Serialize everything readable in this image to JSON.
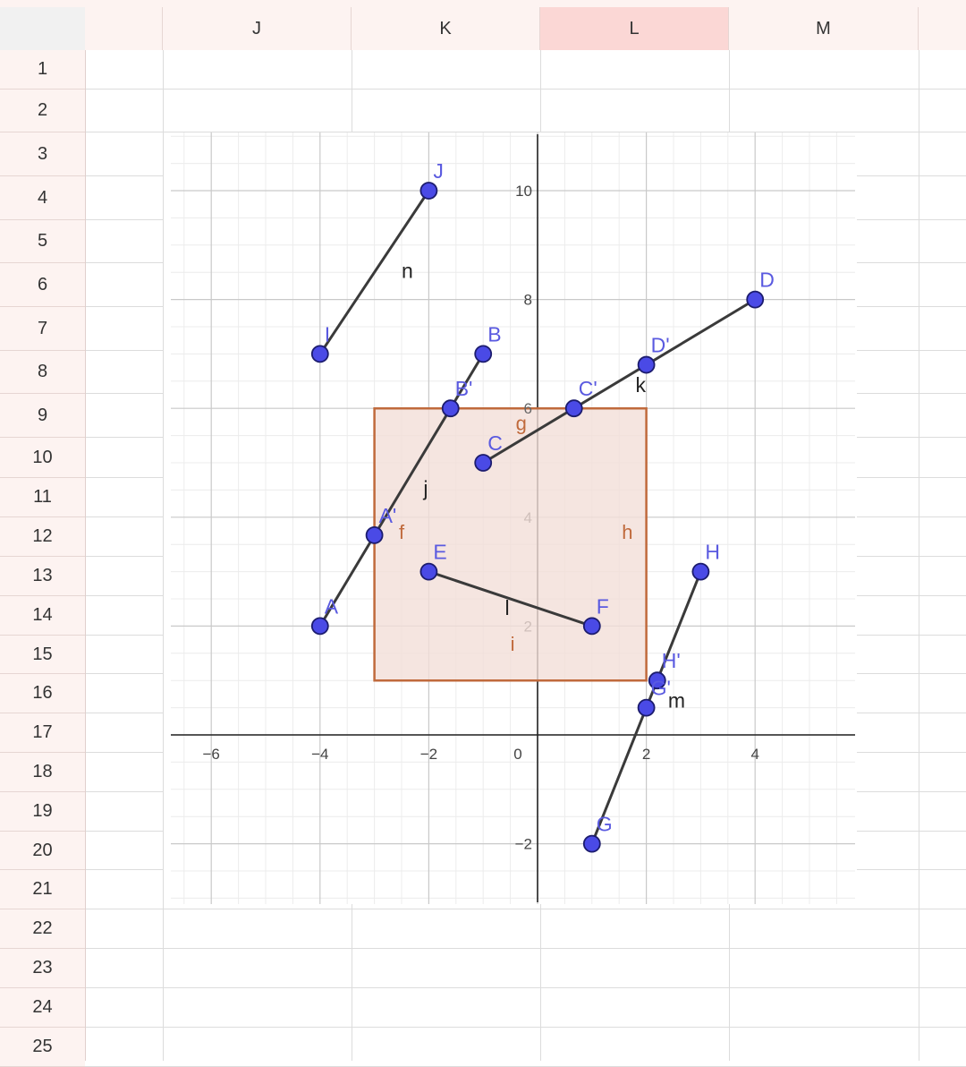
{
  "sheet": {
    "columns": [
      "J",
      "K",
      "L",
      "M"
    ],
    "active_column": "L",
    "rows": [
      "1",
      "2",
      "3",
      "4",
      "5",
      "6",
      "7",
      "8",
      "9",
      "10",
      "11",
      "12",
      "13",
      "14",
      "15",
      "16",
      "17",
      "18",
      "19",
      "20",
      "21",
      "22",
      "23",
      "24",
      "25"
    ]
  },
  "chart_data": {
    "type": "scatter",
    "title": "",
    "xlabel": "",
    "ylabel": "",
    "xlim": [
      -6.3,
      6.0
    ],
    "ylim": [
      -3.3,
      11.1
    ],
    "x_ticks": [
      -6,
      -4,
      -2,
      0,
      2,
      4
    ],
    "y_ticks": [
      -2,
      2,
      4,
      8,
      10
    ],
    "x_tick_labels": [
      "−6",
      "−4",
      "−2",
      "0",
      "2",
      "4"
    ],
    "y_tick_labels": [
      "−2",
      "2",
      "4",
      "8",
      "10"
    ],
    "extra_tick_label": {
      "text": "6",
      "x": 0,
      "y": 6
    },
    "grid": true,
    "colors": {
      "point": "#4a4ae6",
      "point_label": "#5a5ae0",
      "segment": "#3a3a3a",
      "polygon_edge": "#c06a3c",
      "polygon_fill": "#f2dfd8",
      "polygon_label": "#c06a3c",
      "axis": "#222222"
    },
    "points": [
      {
        "name": "J",
        "x": -2,
        "y": 10
      },
      {
        "name": "I",
        "x": -4,
        "y": 7
      },
      {
        "name": "D",
        "x": 4,
        "y": 8
      },
      {
        "name": "B",
        "x": -1,
        "y": 7
      },
      {
        "name": "D'",
        "x": 2,
        "y": 6.8
      },
      {
        "name": "C'",
        "x": 0.67,
        "y": 6
      },
      {
        "name": "B'",
        "x": -1.6,
        "y": 6
      },
      {
        "name": "C",
        "x": -1,
        "y": 5
      },
      {
        "name": "A'",
        "x": -3,
        "y": 3.67
      },
      {
        "name": "E",
        "x": -2,
        "y": 3
      },
      {
        "name": "H",
        "x": 3,
        "y": 3
      },
      {
        "name": "A",
        "x": -4,
        "y": 2
      },
      {
        "name": "F",
        "x": 1,
        "y": 2
      },
      {
        "name": "H'",
        "x": 2.2,
        "y": 1
      },
      {
        "name": "G'",
        "x": 2,
        "y": 0.5
      },
      {
        "name": "G",
        "x": 1,
        "y": -2
      }
    ],
    "segments": [
      {
        "name": "n",
        "from": "I",
        "to": "J"
      },
      {
        "name": "j",
        "from": "A",
        "to": "B"
      },
      {
        "name": "k",
        "from": "C",
        "to": "D"
      },
      {
        "name": "l",
        "from": "E",
        "to": "F"
      },
      {
        "name": "m",
        "from": "G",
        "to": "H"
      }
    ],
    "segment_labels": [
      {
        "text": "n",
        "x": -2.5,
        "y": 8.4
      },
      {
        "text": "j",
        "x": -2.1,
        "y": 4.4
      },
      {
        "text": "k",
        "x": 1.8,
        "y": 6.3
      },
      {
        "text": "l",
        "x": -0.6,
        "y": 2.2
      },
      {
        "text": "m",
        "x": 2.4,
        "y": 0.5
      }
    ],
    "polygon": {
      "vertices": [
        [
          -3,
          1
        ],
        [
          2,
          1
        ],
        [
          2,
          6
        ],
        [
          -3,
          6
        ]
      ],
      "edge_labels": [
        {
          "text": "f",
          "x": -2.55,
          "y": 3.6
        },
        {
          "text": "g",
          "x": -0.4,
          "y": 5.6
        },
        {
          "text": "h",
          "x": 1.55,
          "y": 3.6
        },
        {
          "text": "i",
          "x": -0.5,
          "y": 1.55
        }
      ]
    }
  }
}
